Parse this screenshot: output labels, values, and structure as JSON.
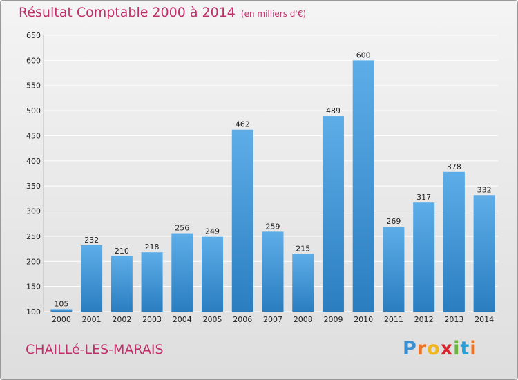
{
  "header": {
    "title": "Résultat Comptable 2000 à 2014",
    "unit": "(en milliers d'€)"
  },
  "footer": {
    "commune": "CHAILLé-LES-MARAIS",
    "logo_letters": [
      "P",
      "r",
      "o",
      "x",
      "i",
      "t",
      "i"
    ],
    "logo_colors": [
      "#3a8fd0",
      "#e8732a",
      "#f0b81e",
      "#d8262f",
      "#6cb33f",
      "#2aa0d8",
      "#e8732a"
    ]
  },
  "colors": {
    "bar_top": "#5dade8",
    "bar_bottom": "#2a7ec0",
    "title": "#c0306a",
    "grid": "#ffffff"
  },
  "chart_data": {
    "type": "bar",
    "categories": [
      "2000",
      "2001",
      "2002",
      "2003",
      "2004",
      "2005",
      "2006",
      "2007",
      "2008",
      "2009",
      "2010",
      "2011",
      "2012",
      "2013",
      "2014"
    ],
    "values": [
      105,
      232,
      210,
      218,
      256,
      249,
      462,
      259,
      215,
      489,
      600,
      269,
      317,
      378,
      332
    ],
    "ylim": [
      100,
      650
    ],
    "yticks": [
      100,
      150,
      200,
      250,
      300,
      350,
      400,
      450,
      500,
      550,
      600,
      650
    ],
    "grid": true
  }
}
